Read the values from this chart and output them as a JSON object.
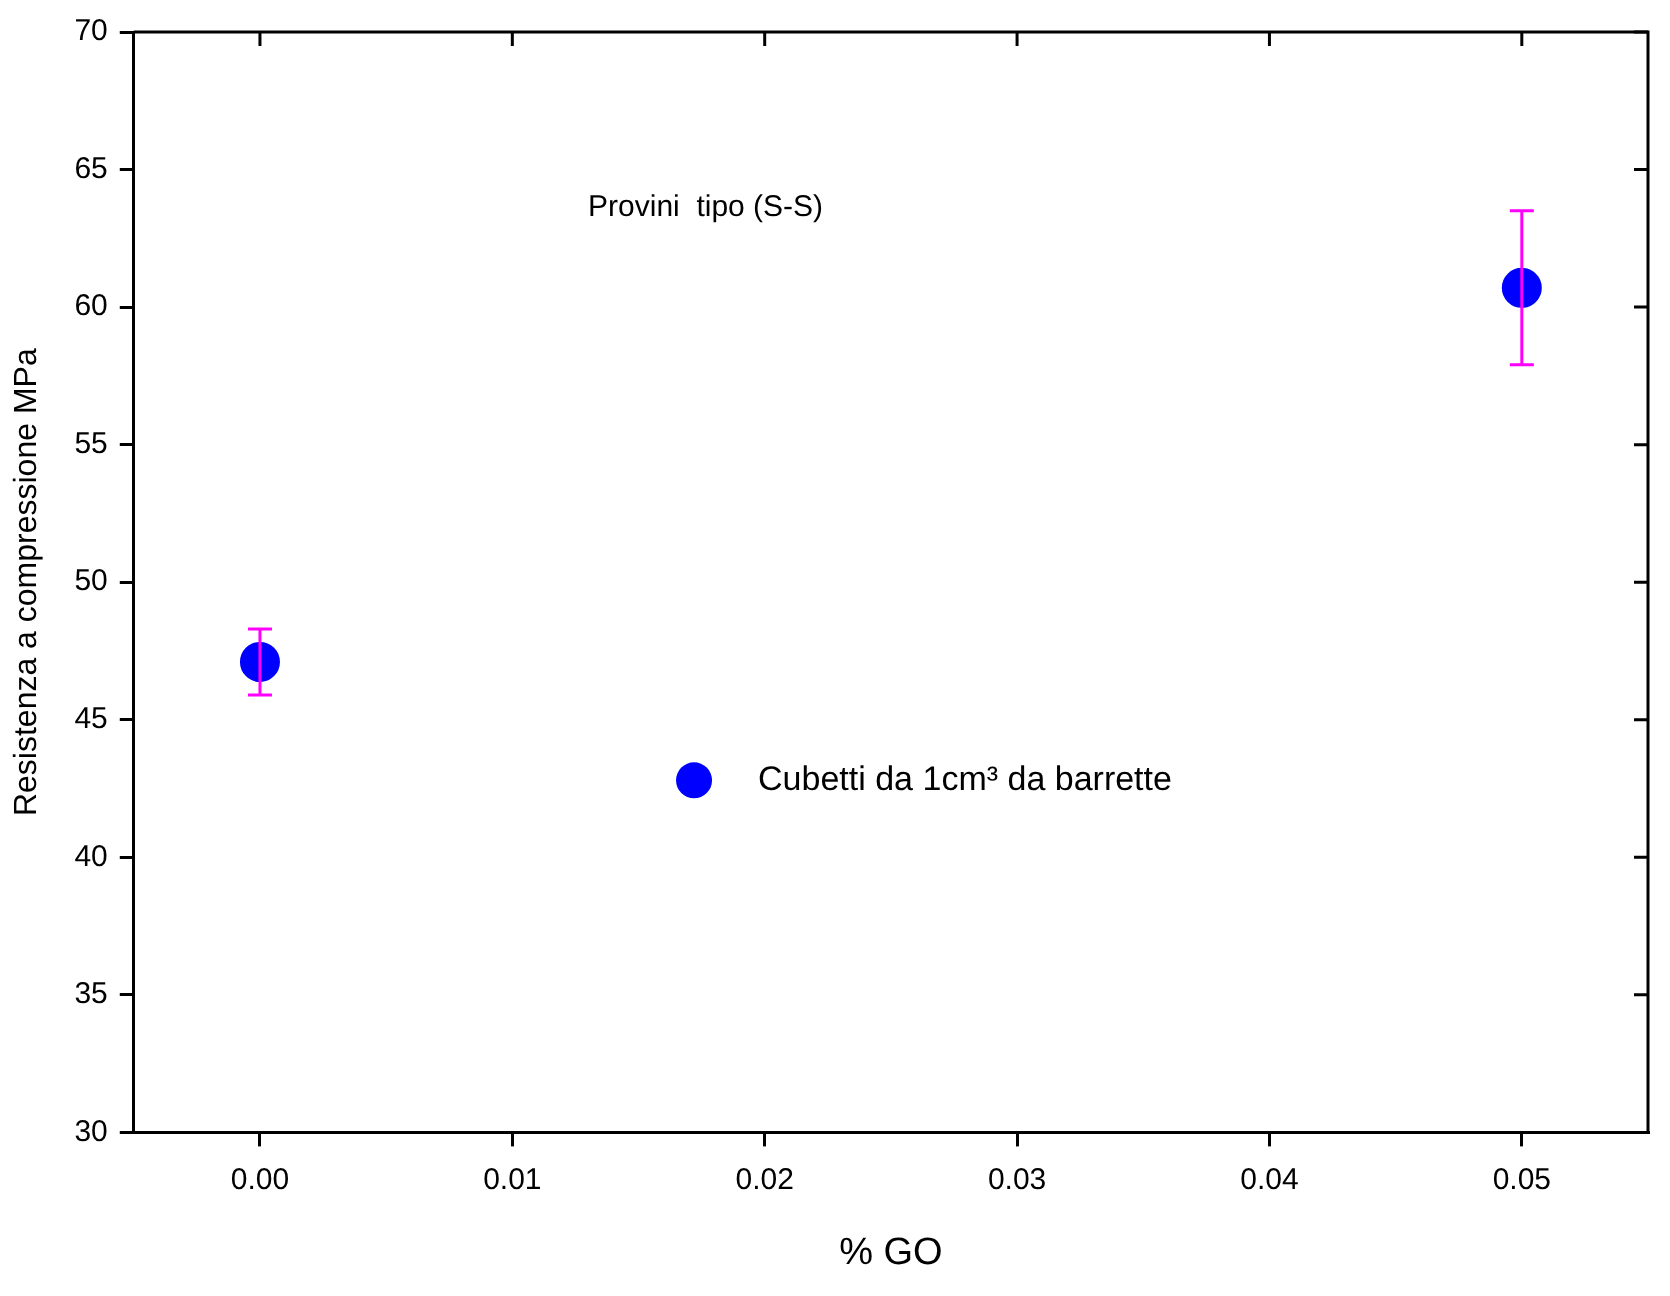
{
  "chart_data": {
    "type": "scatter",
    "xlabel": "% GO",
    "ylabel": "Resistenza a compressione MPa",
    "annotations": [
      "Provini  tipo (S-S)"
    ],
    "x": [
      0.0,
      0.05
    ],
    "series": [
      {
        "name": "Cubetti da 1cm³ da barrette",
        "color": "#0000ff",
        "values": [
          47.1,
          60.7
        ],
        "errors": [
          [
            45.9,
            48.3
          ],
          [
            57.9,
            63.5
          ]
        ]
      }
    ],
    "xlim": [
      -0.005,
      0.055
    ],
    "xticks": [
      {
        "value": 0,
        "label": "0.00"
      },
      {
        "value": 0.01,
        "label": "0.01"
      },
      {
        "value": 0.02,
        "label": "0.02"
      },
      {
        "value": 0.03,
        "label": "0.03"
      },
      {
        "value": 0.04,
        "label": "0.04"
      },
      {
        "value": 0.05,
        "label": "0.05"
      }
    ],
    "ylim": [
      30,
      70
    ],
    "yticks": [
      30,
      35,
      40,
      45,
      50,
      55,
      60,
      65,
      70
    ],
    "grid": false,
    "legend": "center",
    "marker": "circle"
  }
}
